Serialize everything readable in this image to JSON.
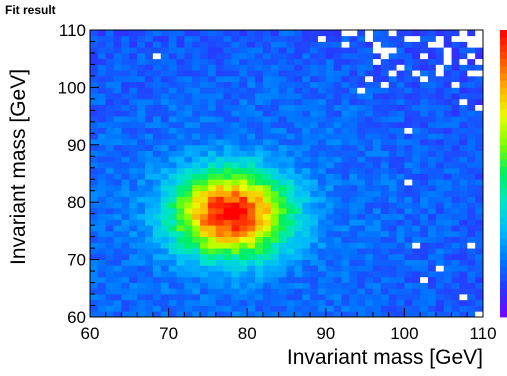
{
  "chart_data": {
    "type": "heatmap",
    "title": "Fit result",
    "xlabel": "Invariant mass [GeV]",
    "ylabel": "Invariant mass [GeV]",
    "xlim": [
      60,
      110
    ],
    "ylim": [
      60,
      110
    ],
    "x_ticks": [
      60,
      70,
      80,
      90,
      100,
      110
    ],
    "y_ticks": [
      60,
      70,
      80,
      90,
      100,
      110
    ],
    "bins": [
      50,
      50
    ],
    "peak": {
      "x": 78,
      "y": 78
    },
    "colormap": [
      "#7a00ff",
      "#2a35ff",
      "#0077ff",
      "#00b8ff",
      "#00e6c8",
      "#00f060",
      "#7dff00",
      "#e8ff00",
      "#ffb000",
      "#ff5000",
      "#ff0000"
    ],
    "colorbar": true,
    "grid": false,
    "empty_bin_color": "#ffffff"
  }
}
